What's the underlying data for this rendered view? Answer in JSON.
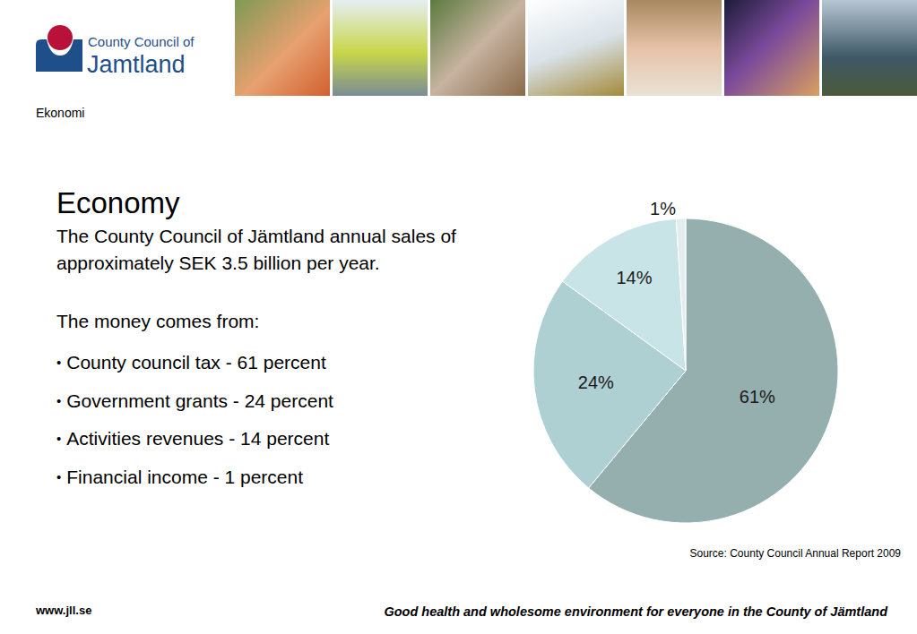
{
  "header": {
    "logo": [
      "County Council of",
      "Jamtland"
    ],
    "section": "Ekonomi"
  },
  "text": {
    "title": "Economy",
    "intro": "The County Council of Jämtland annual sales of approximately SEK 3.5 billion per year.",
    "lead": "The money comes from:",
    "bullets": [
      "County council tax - 61 percent",
      "Government grants - 24 percent",
      "Activities revenues - 14 percent",
      "Financial income - 1 percent"
    ]
  },
  "chart_data": {
    "type": "pie",
    "values": [
      61,
      24,
      14,
      1
    ],
    "value_labels": [
      "61%",
      "24%",
      "14%",
      "1%"
    ],
    "colors": [
      "#95aeae",
      "#aed0d2",
      "#c9e4e6",
      "#e3eded"
    ],
    "data_labels": true,
    "source": "Source: County Council Annual Report 2009"
  },
  "footer": {
    "url": "www.jll.se",
    "tagline": "Good health and wholesome environment for everyone in the County of Jämtland"
  }
}
